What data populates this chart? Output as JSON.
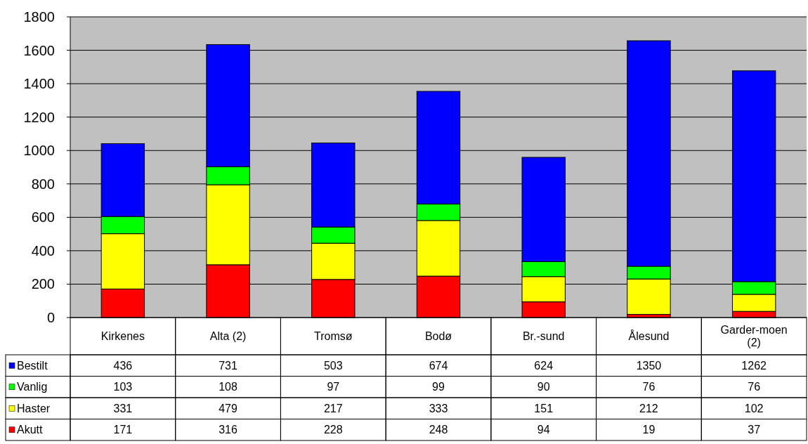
{
  "chart_data": {
    "type": "bar",
    "stacked": true,
    "categories": [
      "Kirkenes",
      "Alta (2)",
      "Tromsø",
      "Bodø",
      "Br.-sund",
      "Ålesund",
      "Garder-moen (2)"
    ],
    "series": [
      {
        "name": "Akutt",
        "color": "#ff0000",
        "values": [
          171,
          316,
          228,
          248,
          94,
          19,
          37
        ]
      },
      {
        "name": "Haster",
        "color": "#ffff00",
        "values": [
          331,
          479,
          217,
          333,
          151,
          212,
          102
        ]
      },
      {
        "name": "Vanlig",
        "color": "#00ff00",
        "values": [
          103,
          108,
          97,
          99,
          90,
          76,
          76
        ]
      },
      {
        "name": "Bestilt",
        "color": "#0000ff",
        "values": [
          436,
          731,
          503,
          674,
          624,
          1350,
          1262
        ]
      }
    ],
    "ylim": [
      0,
      1800
    ],
    "yticks": [
      0,
      200,
      400,
      600,
      800,
      1000,
      1200,
      1400,
      1600,
      1800
    ],
    "grid": "y",
    "legend": "bottom",
    "data_labels": true
  }
}
